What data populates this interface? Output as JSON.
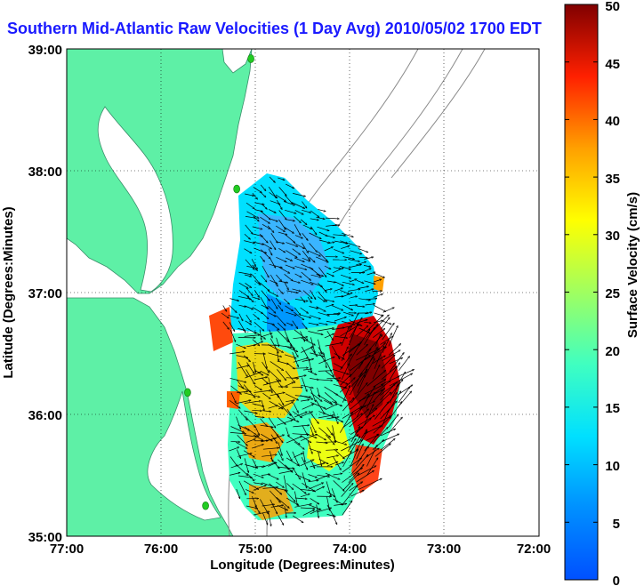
{
  "title": "Southern Mid-Atlantic Raw Velocities (1 Day Avg) 2010/05/02 1700 EDT",
  "map": {
    "x_axis": {
      "label": "Longitude (Degrees:Minutes)",
      "ticks": [
        "77:00",
        "76:00",
        "75:00",
        "74:00",
        "73:00",
        "72:00"
      ],
      "range_deg_west": [
        77,
        72
      ]
    },
    "y_axis": {
      "label": "Latitude (Degrees:Minutes)",
      "ticks": [
        "35:00",
        "36:00",
        "37:00",
        "38:00",
        "39:00"
      ],
      "range_deg_north": [
        35,
        39
      ]
    },
    "grid": "dotted",
    "land_color": "#5ef0a6",
    "water_color": "#ffffff",
    "bathymetry_color": "#8a8a8a",
    "station_color": "#22cc22",
    "stations_lonlat": [
      [
        -75.05,
        38.92
      ],
      [
        -75.2,
        37.85
      ],
      [
        -75.72,
        36.18
      ],
      [
        -75.53,
        35.25
      ]
    ]
  },
  "colorbar": {
    "label": "Surface Velocity (cm/s)",
    "min": 0,
    "max": 50,
    "ticks": [
      "0",
      "5",
      "10",
      "15",
      "20",
      "25",
      "30",
      "35",
      "40",
      "45",
      "50"
    ],
    "colormap": "jet"
  }
}
